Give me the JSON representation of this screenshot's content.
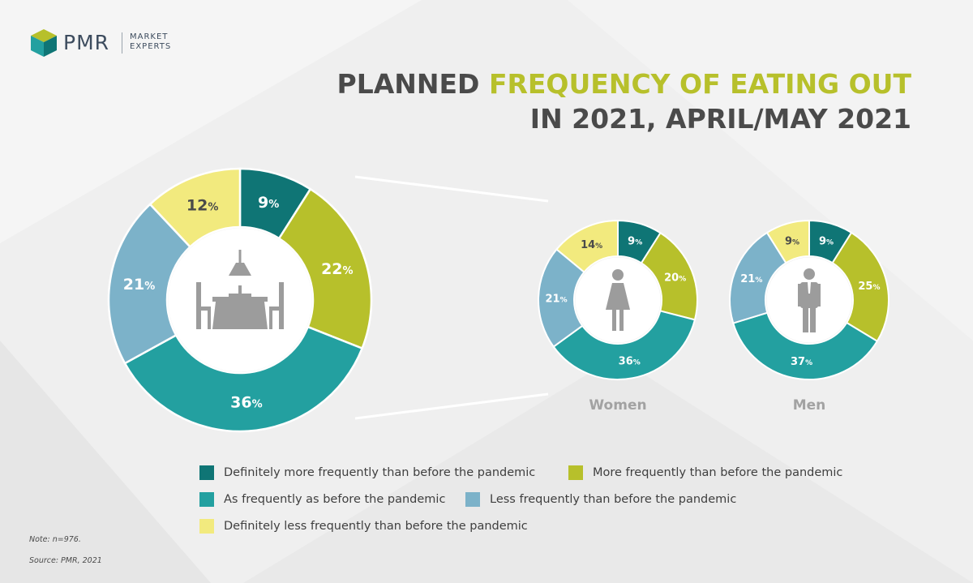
{
  "logo": {
    "name": "PMR",
    "tagline_1": "MARKET",
    "tagline_2": "EXPERTS"
  },
  "title": {
    "line1_prefix": "PLANNED ",
    "line1_highlight": "FREQUENCY OF EATING OUT",
    "line2": "IN 2021, APRIL/MAY 2021"
  },
  "colors": {
    "def_more": "#0f7575",
    "more": "#b7c02b",
    "same": "#23a0a0",
    "less": "#7cb2c9",
    "def_less": "#f2ea7e",
    "accent": "#b7c02b",
    "icon": "#9c9c9c"
  },
  "chart_data": [
    {
      "type": "pie",
      "title": "",
      "categories": [
        "Definitely more frequently than before the pandemic",
        "More frequently than before the pandemic",
        "As frequently as before the pandemic",
        "Less frequently than before the pandemic",
        "Definitely less frequently than before the pandemic"
      ],
      "values": [
        9,
        22,
        36,
        21,
        12
      ],
      "labels": [
        "9",
        "22",
        "36",
        "21",
        "12"
      ],
      "unit": "%",
      "icon": "dining-table-icon"
    },
    {
      "type": "pie",
      "title": "Women",
      "categories": [
        "Definitely more frequently than before the pandemic",
        "More frequently than before the pandemic",
        "As frequently as before the pandemic",
        "Less frequently than before the pandemic",
        "Definitely less frequently than before the pandemic"
      ],
      "values": [
        9,
        20,
        36,
        21,
        14
      ],
      "labels": [
        "9",
        "20",
        "36",
        "21",
        "14"
      ],
      "unit": "%",
      "icon": "woman-icon"
    },
    {
      "type": "pie",
      "title": "Men",
      "categories": [
        "Definitely more frequently than before the pandemic",
        "More frequently than before the pandemic",
        "As frequently as before the pandemic",
        "Less frequently than before the pandemic",
        "Definitely less frequently than before the pandemic"
      ],
      "values": [
        9,
        25,
        37,
        21,
        9
      ],
      "labels": [
        "9",
        "25",
        "37",
        "21",
        "9"
      ],
      "unit": "%",
      "icon": "man-icon"
    }
  ],
  "legend": {
    "placement": "bottom",
    "items": [
      {
        "key": "def_more",
        "label": "Definitely more frequently than before the pandemic"
      },
      {
        "key": "more",
        "label": "More frequently than before the pandemic"
      },
      {
        "key": "same",
        "label": "As frequently as before the pandemic"
      },
      {
        "key": "less",
        "label": "Less frequently than before the pandemic"
      },
      {
        "key": "def_less",
        "label": "Definitely less frequently than before the pandemic"
      }
    ]
  },
  "footer": {
    "note": "Note: n=976.",
    "source": "Source: PMR, 2021"
  }
}
